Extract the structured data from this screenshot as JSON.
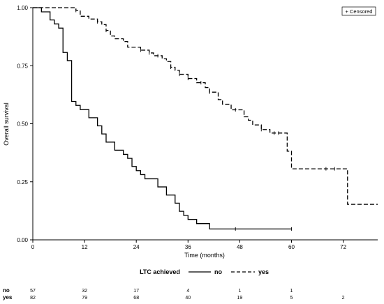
{
  "chart_data": {
    "type": "line",
    "subtype": "kaplan-meier",
    "title": "",
    "xlabel": "Time (months)",
    "ylabel": "Overall survival",
    "xlim": [
      0,
      80
    ],
    "ylim": [
      0,
      1
    ],
    "xticks": [
      0,
      12,
      24,
      36,
      48,
      60,
      72
    ],
    "yticks": [
      0.0,
      0.25,
      0.5,
      0.75,
      1.0
    ],
    "xtick_labels": [
      "0",
      "12",
      "24",
      "36",
      "48",
      "60",
      "72"
    ],
    "ytick_labels": [
      "0.00",
      "0.25",
      "0.50",
      "0.75",
      "1.00"
    ],
    "grid": false,
    "censored_legend": "+ Censored",
    "legend": {
      "title": "LTC achieved",
      "position": "bottom-center"
    },
    "series": [
      {
        "name": "no",
        "style": "solid",
        "points": [
          [
            0,
            1.0
          ],
          [
            2,
            0.982
          ],
          [
            4,
            0.947
          ],
          [
            5,
            0.93
          ],
          [
            6,
            0.912
          ],
          [
            7,
            0.807
          ],
          [
            8,
            0.772
          ],
          [
            9,
            0.596
          ],
          [
            10,
            0.579
          ],
          [
            11,
            0.561
          ],
          [
            13,
            0.526
          ],
          [
            15,
            0.491
          ],
          [
            16,
            0.456
          ],
          [
            17,
            0.421
          ],
          [
            19,
            0.386
          ],
          [
            21,
            0.368
          ],
          [
            22,
            0.351
          ],
          [
            23,
            0.316
          ],
          [
            24,
            0.298
          ],
          [
            25,
            0.281
          ],
          [
            26,
            0.263
          ],
          [
            29,
            0.228
          ],
          [
            31,
            0.193
          ],
          [
            33,
            0.158
          ],
          [
            34,
            0.123
          ],
          [
            35,
            0.105
          ],
          [
            36,
            0.088
          ],
          [
            38,
            0.07
          ],
          [
            41,
            0.047
          ],
          [
            60,
            0.047
          ]
        ],
        "censored": [
          [
            47,
            0.047
          ],
          [
            60,
            0.047
          ]
        ]
      },
      {
        "name": "yes",
        "style": "dashed",
        "points": [
          [
            0,
            1.0
          ],
          [
            10,
            0.988
          ],
          [
            11,
            0.963
          ],
          [
            13,
            0.951
          ],
          [
            15,
            0.939
          ],
          [
            16,
            0.927
          ],
          [
            17,
            0.902
          ],
          [
            18,
            0.878
          ],
          [
            19,
            0.866
          ],
          [
            21,
            0.854
          ],
          [
            22,
            0.83
          ],
          [
            25,
            0.817
          ],
          [
            27,
            0.805
          ],
          [
            28,
            0.793
          ],
          [
            30,
            0.78
          ],
          [
            31,
            0.768
          ],
          [
            32,
            0.743
          ],
          [
            33,
            0.73
          ],
          [
            34,
            0.713
          ],
          [
            36,
            0.695
          ],
          [
            38,
            0.677
          ],
          [
            40,
            0.656
          ],
          [
            41,
            0.636
          ],
          [
            43,
            0.604
          ],
          [
            44,
            0.584
          ],
          [
            46,
            0.56
          ],
          [
            49,
            0.53
          ],
          [
            50,
            0.515
          ],
          [
            51,
            0.495
          ],
          [
            53,
            0.475
          ],
          [
            55,
            0.46
          ],
          [
            58,
            0.46
          ],
          [
            59,
            0.382
          ],
          [
            60,
            0.306
          ],
          [
            73,
            0.153
          ],
          [
            80,
            0.153
          ]
        ],
        "censored": [
          [
            10,
            0.988
          ],
          [
            15,
            0.939
          ],
          [
            17,
            0.902
          ],
          [
            25,
            0.817
          ],
          [
            27,
            0.805
          ],
          [
            29,
            0.793
          ],
          [
            32,
            0.743
          ],
          [
            34,
            0.713
          ],
          [
            36,
            0.695
          ],
          [
            39,
            0.677
          ],
          [
            41,
            0.636
          ],
          [
            47,
            0.56
          ],
          [
            49,
            0.545
          ],
          [
            53,
            0.475
          ],
          [
            56,
            0.46
          ],
          [
            57,
            0.46
          ],
          [
            68,
            0.306
          ],
          [
            70,
            0.306
          ]
        ]
      }
    ],
    "risk_table": {
      "rows": [
        {
          "label": "no",
          "counts": [
            "57",
            "32",
            "17",
            "4",
            "1",
            "1",
            ""
          ]
        },
        {
          "label": "yes",
          "counts": [
            "82",
            "79",
            "68",
            "40",
            "19",
            "5",
            "2"
          ]
        }
      ]
    }
  }
}
